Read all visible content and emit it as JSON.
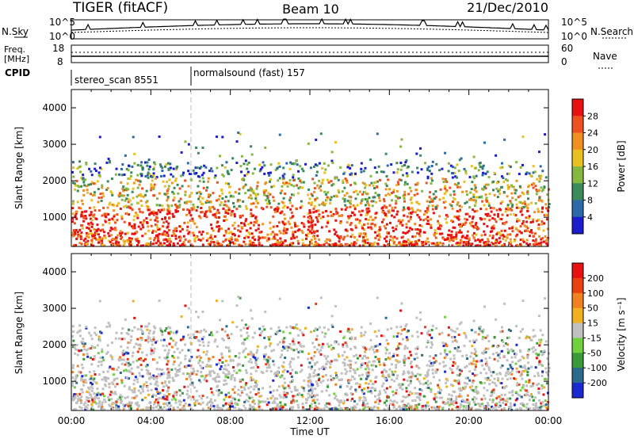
{
  "header": {
    "radar": "TIGER (fitACF)",
    "beam": "Beam 10",
    "date": "21/Dec/2010"
  },
  "summary": {
    "nsky_label": "N.Sky",
    "nsky_ticks": [
      "10^5",
      "10^0"
    ],
    "nsearch_label": "N.Search",
    "freq_label": "Freq.",
    "freq_unit": "[MHz]",
    "freq_ticks": [
      "18",
      "8"
    ],
    "nave_label": "Nave",
    "nave_ticks": [
      "60",
      "0"
    ],
    "cpid_label": "CPID",
    "modes": [
      {
        "name": "stereo_scan 8551",
        "start_hour": 0
      },
      {
        "name": "normalsound (fast) 157",
        "start_hour": 6
      }
    ]
  },
  "time_axis": {
    "label": "Time UT",
    "ticks": [
      "00:00",
      "04:00",
      "08:00",
      "12:00",
      "16:00",
      "20:00",
      "00:00"
    ],
    "tick_hours": [
      0,
      4,
      8,
      12,
      16,
      20,
      24
    ]
  },
  "chart_data": [
    {
      "type": "heatmap",
      "panel": "power",
      "ylabel": "Slant Range [km]",
      "ylim": [
        200,
        4500
      ],
      "yticks": [
        "1000",
        "2000",
        "3000",
        "4000"
      ],
      "ytick_values": [
        1000,
        2000,
        3000,
        4000
      ],
      "xlim": [
        0,
        24
      ],
      "colorbar": {
        "label": "Power [dB]",
        "ticks": [
          "4",
          "8",
          "12",
          "16",
          "20",
          "24",
          "28"
        ],
        "colors": [
          "#1c1ccc",
          "#2a6aa8",
          "#3a8a5a",
          "#86b840",
          "#e8c020",
          "#f09020",
          "#ee5020",
          "#e81010"
        ]
      }
    },
    {
      "type": "heatmap",
      "panel": "velocity",
      "ylabel": "Slant Range [km]",
      "ylim": [
        200,
        4500
      ],
      "yticks": [
        "1000",
        "2000",
        "3000",
        "4000"
      ],
      "ytick_values": [
        1000,
        2000,
        3000,
        4000
      ],
      "xlim": [
        0,
        24
      ],
      "colorbar": {
        "label": "Velocity [m s⁻¹]",
        "ticks": [
          "200",
          "100",
          "50",
          "15",
          "-15",
          "-50",
          "-100",
          "-200"
        ],
        "colors": [
          "#1a2ad0",
          "#2a6a8a",
          "#3a9a3a",
          "#70d040",
          "#c0c0c0",
          "#f0b020",
          "#f08020",
          "#e84010",
          "#e81010"
        ]
      }
    }
  ]
}
